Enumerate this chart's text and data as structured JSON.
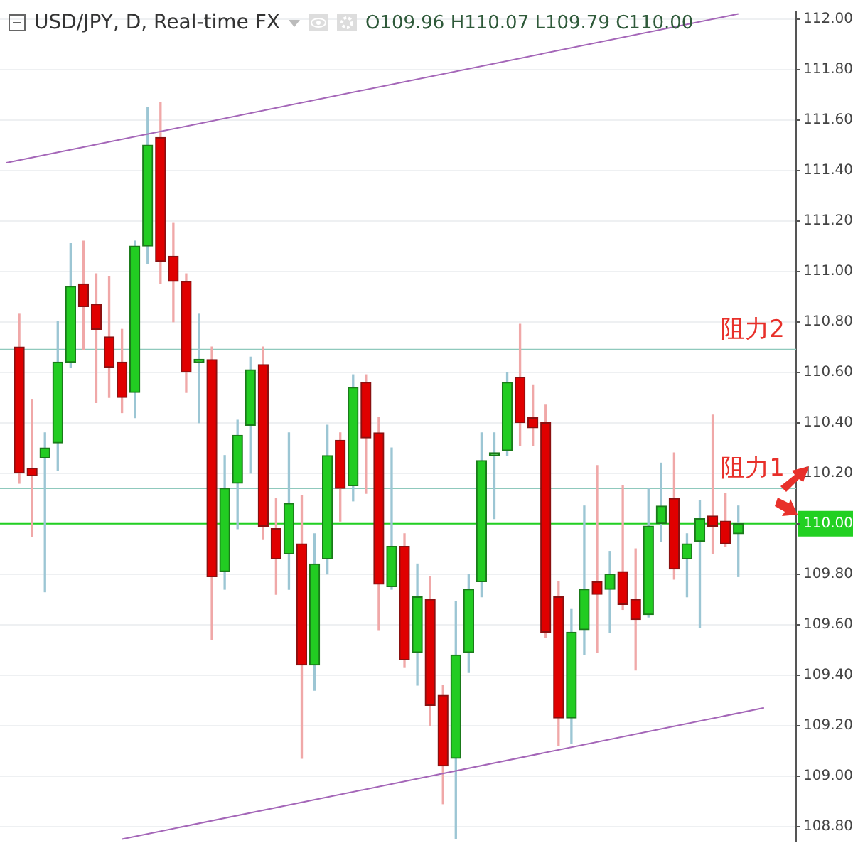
{
  "chart_data": {
    "type": "candlestick",
    "title": "USD/JPY, D, Real-time FX",
    "subtitle": "O109.96 H110.07 L109.79 C110.00",
    "categories": [
      null,
      null,
      null,
      null,
      null,
      null,
      null,
      null,
      null,
      null,
      null,
      null,
      null,
      null,
      null,
      null,
      null,
      null,
      null,
      null,
      null,
      null,
      null,
      null,
      null,
      null,
      null,
      null,
      null,
      null,
      null,
      null,
      null,
      null,
      null,
      null,
      null,
      null,
      null,
      null,
      null,
      null,
      null,
      null,
      null,
      null,
      null,
      null,
      null,
      null,
      null,
      null,
      null,
      null,
      null,
      null,
      null,
      null,
      null,
      null,
      null,
      null
    ],
    "ohlc": [
      null,
      [
        110.7,
        110.83,
        110.16,
        110.2
      ],
      [
        110.22,
        110.49,
        109.95,
        110.19
      ],
      [
        110.26,
        110.36,
        109.73,
        110.3
      ],
      [
        110.32,
        110.8,
        110.21,
        110.64
      ],
      [
        110.64,
        111.11,
        110.62,
        110.94
      ],
      [
        110.95,
        111.12,
        110.69,
        110.86
      ],
      [
        110.87,
        110.99,
        110.48,
        110.77
      ],
      [
        110.74,
        110.98,
        110.5,
        110.62
      ],
      [
        110.64,
        110.77,
        110.44,
        110.5
      ],
      [
        110.52,
        111.12,
        110.42,
        111.1
      ],
      [
        111.1,
        111.65,
        111.03,
        111.5
      ],
      [
        111.53,
        111.67,
        110.95,
        111.04
      ],
      [
        111.06,
        111.19,
        110.8,
        110.96
      ],
      [
        110.96,
        110.99,
        110.52,
        110.6
      ],
      [
        110.64,
        110.83,
        110.4,
        110.65
      ],
      [
        110.65,
        110.7,
        109.54,
        109.79
      ],
      [
        109.81,
        110.27,
        109.74,
        110.14
      ],
      [
        110.16,
        110.41,
        109.98,
        110.35
      ],
      [
        110.39,
        110.66,
        110.2,
        110.61
      ],
      [
        110.63,
        110.7,
        109.94,
        109.99
      ],
      [
        109.98,
        110.1,
        109.72,
        109.86
      ],
      [
        109.88,
        110.36,
        109.74,
        110.08
      ],
      [
        109.92,
        110.11,
        109.07,
        109.44
      ],
      [
        109.44,
        109.96,
        109.34,
        109.84
      ],
      [
        109.86,
        110.39,
        109.8,
        110.27
      ],
      [
        110.33,
        110.36,
        110.01,
        110.14
      ],
      [
        110.15,
        110.59,
        110.09,
        110.54
      ],
      [
        110.56,
        110.59,
        110.12,
        110.34
      ],
      [
        110.36,
        110.42,
        109.58,
        109.76
      ],
      [
        109.75,
        110.3,
        109.74,
        109.91
      ],
      [
        109.91,
        109.96,
        109.43,
        109.46
      ],
      [
        109.49,
        109.84,
        109.36,
        109.71
      ],
      [
        109.7,
        109.79,
        109.2,
        109.28
      ],
      [
        109.32,
        109.36,
        108.89,
        109.04
      ],
      [
        109.07,
        109.69,
        108.75,
        109.48
      ],
      [
        109.49,
        109.8,
        109.41,
        109.74
      ],
      [
        109.77,
        110.36,
        109.71,
        110.25
      ],
      [
        110.27,
        110.36,
        110.02,
        110.28
      ],
      [
        110.29,
        110.6,
        110.27,
        110.56
      ],
      [
        110.58,
        110.79,
        110.31,
        110.4
      ],
      [
        110.42,
        110.55,
        110.31,
        110.38
      ],
      [
        110.4,
        110.47,
        109.55,
        109.57
      ],
      [
        109.71,
        109.77,
        109.12,
        109.23
      ],
      [
        109.23,
        109.66,
        109.13,
        109.57
      ],
      [
        109.58,
        110.07,
        109.48,
        109.74
      ],
      [
        109.77,
        110.23,
        109.49,
        109.72
      ],
      [
        109.74,
        109.89,
        109.57,
        109.8
      ],
      [
        109.81,
        110.15,
        109.66,
        109.68
      ],
      [
        109.7,
        109.9,
        109.42,
        109.62
      ],
      [
        109.64,
        110.14,
        109.63,
        109.99
      ],
      [
        110.0,
        110.24,
        109.93,
        110.07
      ],
      [
        110.1,
        110.28,
        109.78,
        109.82
      ],
      [
        109.86,
        109.96,
        109.71,
        109.92
      ],
      [
        109.93,
        110.09,
        109.59,
        110.02
      ],
      [
        110.03,
        110.43,
        109.88,
        109.99
      ],
      [
        110.01,
        110.12,
        109.91,
        109.92
      ],
      [
        109.96,
        110.07,
        109.79,
        110.0
      ],
      null,
      null,
      null,
      null
    ],
    "series": [
      {
        "type": "line",
        "color": "#a466b8",
        "values": [
          111.43,
          null,
          null,
          null,
          null,
          null,
          null,
          null,
          null,
          null,
          null,
          null,
          null,
          null,
          null,
          null,
          null,
          null,
          null,
          null,
          null,
          null,
          null,
          null,
          null,
          null,
          null,
          null,
          null,
          null,
          null,
          null,
          null,
          null,
          null,
          null,
          null,
          null,
          null,
          null,
          null,
          null,
          null,
          null,
          null,
          null,
          null,
          null,
          null,
          null,
          null,
          null,
          null,
          null,
          null,
          null,
          null,
          112.02,
          null,
          null,
          null,
          null
        ]
      },
      {
        "type": "line",
        "color": "#a466b8",
        "values": [
          null,
          null,
          null,
          null,
          null,
          null,
          null,
          null,
          null,
          108.75,
          null,
          null,
          null,
          null,
          null,
          null,
          null,
          null,
          null,
          null,
          null,
          null,
          null,
          null,
          null,
          null,
          null,
          null,
          null,
          null,
          null,
          null,
          null,
          null,
          null,
          null,
          null,
          null,
          null,
          null,
          null,
          null,
          null,
          null,
          null,
          null,
          null,
          null,
          null,
          null,
          null,
          null,
          null,
          null,
          null,
          null,
          null,
          null,
          null,
          109.27,
          null,
          null
        ]
      }
    ],
    "ylim": [
      108.74,
      112.03
    ],
    "yticks": [
      {
        "value": 108.8,
        "label": "108.80"
      },
      {
        "value": 109.0,
        "label": "109.00"
      },
      {
        "value": 109.2,
        "label": "109.20"
      },
      {
        "value": 109.4,
        "label": "109.40"
      },
      {
        "value": 109.6,
        "label": "109.60"
      },
      {
        "value": 109.8,
        "label": "109.80"
      },
      {
        "value": 110.0,
        "label": "110.00"
      },
      {
        "value": 110.2,
        "label": "110.20"
      },
      {
        "value": 110.4,
        "label": "110.40"
      },
      {
        "value": 110.6,
        "label": "110.60"
      },
      {
        "value": 110.8,
        "label": "110.80"
      },
      {
        "value": 111.0,
        "label": "111.00"
      },
      {
        "value": 111.2,
        "label": "111.20"
      },
      {
        "value": 111.4,
        "label": "111.40"
      },
      {
        "value": 111.6,
        "label": "111.60"
      },
      {
        "value": 111.8,
        "label": "111.80"
      },
      {
        "value": 112.0,
        "label": "112.00"
      }
    ],
    "ref_lines": [
      {
        "axis": "y",
        "value": 110.69,
        "label": "阻力2",
        "color": "#8fc9bd"
      },
      {
        "axis": "y",
        "value": 110.14,
        "label": "阻力1",
        "color": "#8fc9bd"
      },
      {
        "axis": "y",
        "value": 110.0,
        "color": "#22d022"
      }
    ],
    "grid": "y",
    "legend": false,
    "tick_labels": "y",
    "marker": "none"
  }
}
